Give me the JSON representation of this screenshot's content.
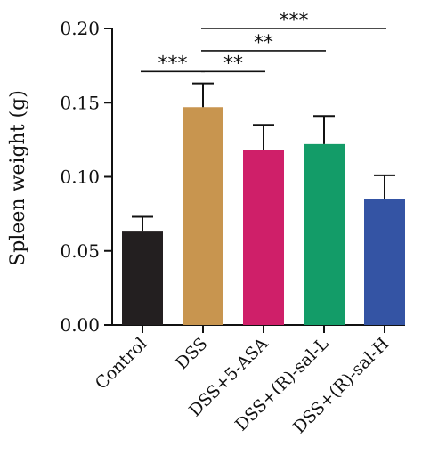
{
  "chart_data": {
    "type": "bar",
    "title": "",
    "xlabel": "",
    "ylabel": "Spleen weight (g)",
    "ylim": [
      0,
      0.2
    ],
    "yticks": [
      "0.00",
      "0.05",
      "0.10",
      "0.15",
      "0.20"
    ],
    "categories": [
      "Control",
      "DSS",
      "DSS+5-ASA",
      "DSS+(R)-sal-L",
      "DSS+(R)-sal-H"
    ],
    "values": [
      0.063,
      0.147,
      0.118,
      0.122,
      0.085
    ],
    "errors": [
      0.01,
      0.016,
      0.017,
      0.019,
      0.016
    ],
    "colors": [
      "#231f20",
      "#c8954f",
      "#cf1f69",
      "#139c68",
      "#3454a4"
    ],
    "significance": [
      {
        "from": 0,
        "to": 1,
        "label": "***",
        "y": 0.171
      },
      {
        "from": 1,
        "to": 2,
        "label": "**",
        "y": 0.171
      },
      {
        "from": 1,
        "to": 3,
        "label": "**",
        "y": 0.185
      },
      {
        "from": 1,
        "to": 4,
        "label": "***",
        "y": 0.2
      }
    ],
    "legend": "none",
    "grid": false
  }
}
